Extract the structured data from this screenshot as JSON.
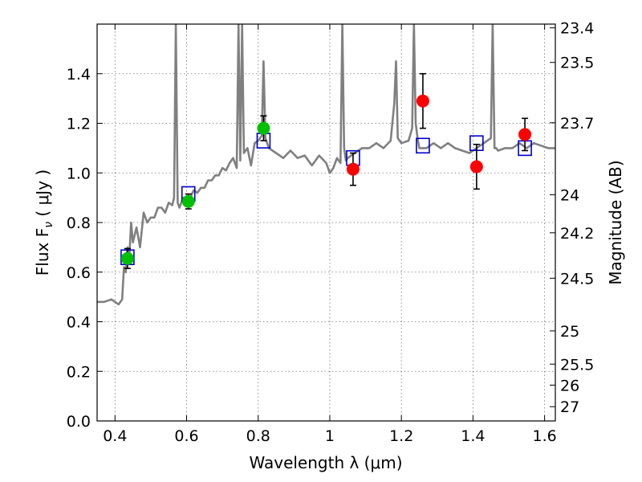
{
  "chart_data": {
    "type": "scatter",
    "title": "",
    "xlabel": "Wavelength  λ (μm)",
    "ylabel": "Flux  F",
    "ylabel_subscript": "ν",
    "ylabel_unit": "  ( μJy )",
    "ylabel_right": "Magnitude (AB)",
    "xlim": [
      0.35,
      1.63
    ],
    "ylim": [
      0.0,
      1.6
    ],
    "grid": true,
    "x_ticks": [
      0.4,
      0.6,
      0.8,
      1.0,
      1.2,
      1.4,
      1.6
    ],
    "x_tick_labels": [
      "0.4",
      "0.6",
      "0.8",
      "1",
      "1.2",
      "1.4",
      "1.6"
    ],
    "y_ticks": [
      0.0,
      0.2,
      0.4,
      0.6,
      0.8,
      1.0,
      1.2,
      1.4
    ],
    "y_tick_labels": [
      "0.0",
      "0.2",
      "0.4",
      "0.6",
      "0.8",
      "1.0",
      "1.2",
      "1.4"
    ],
    "right_ticks": [
      {
        "label": "23.4",
        "mag": 23.4
      },
      {
        "label": "23.5",
        "mag": 23.5
      },
      {
        "label": "23.7",
        "mag": 23.7
      },
      {
        "label": "24",
        "mag": 24.0
      },
      {
        "label": "24.2",
        "mag": 24.2
      },
      {
        "label": "24.5",
        "mag": 24.5
      },
      {
        "label": "25",
        "mag": 25.0
      },
      {
        "label": "25.5",
        "mag": 25.5
      },
      {
        "label": "26",
        "mag": 26.0
      },
      {
        "label": "27",
        "mag": 27.0
      }
    ],
    "model_spectrum": {
      "color": "#808080",
      "x": [
        0.35,
        0.37,
        0.39,
        0.41,
        0.42,
        0.425,
        0.43,
        0.435,
        0.44,
        0.445,
        0.45,
        0.46,
        0.47,
        0.48,
        0.49,
        0.5,
        0.51,
        0.52,
        0.53,
        0.54,
        0.55,
        0.56,
        0.565,
        0.57,
        0.575,
        0.58,
        0.59,
        0.6,
        0.61,
        0.62,
        0.63,
        0.64,
        0.65,
        0.66,
        0.67,
        0.68,
        0.69,
        0.7,
        0.71,
        0.72,
        0.73,
        0.74,
        0.745,
        0.75,
        0.755,
        0.76,
        0.77,
        0.78,
        0.79,
        0.8,
        0.81,
        0.815,
        0.82,
        0.825,
        0.83,
        0.85,
        0.87,
        0.89,
        0.91,
        0.93,
        0.95,
        0.97,
        0.99,
        1.0,
        1.01,
        1.02,
        1.03,
        1.035,
        1.04,
        1.045,
        1.05,
        1.07,
        1.09,
        1.11,
        1.13,
        1.15,
        1.17,
        1.18,
        1.185,
        1.19,
        1.2,
        1.22,
        1.23,
        1.235,
        1.24,
        1.245,
        1.25,
        1.27,
        1.29,
        1.31,
        1.33,
        1.35,
        1.37,
        1.39,
        1.41,
        1.43,
        1.45,
        1.455,
        1.46,
        1.465,
        1.47,
        1.49,
        1.51,
        1.53,
        1.55,
        1.57,
        1.59,
        1.61,
        1.63
      ],
      "y": [
        0.48,
        0.48,
        0.49,
        0.47,
        0.49,
        0.62,
        0.6,
        0.7,
        0.66,
        0.8,
        0.72,
        0.78,
        0.7,
        0.84,
        0.8,
        0.82,
        0.82,
        0.86,
        0.86,
        0.84,
        0.88,
        0.87,
        0.9,
        1.6,
        0.88,
        0.86,
        0.9,
        0.88,
        0.9,
        0.93,
        0.92,
        0.94,
        0.94,
        0.97,
        0.97,
        0.99,
        0.99,
        1.02,
        1.01,
        1.04,
        1.06,
        1.02,
        1.6,
        1.05,
        1.6,
        1.08,
        1.1,
        1.03,
        1.12,
        1.13,
        1.15,
        1.45,
        1.14,
        1.12,
        1.1,
        1.08,
        1.06,
        1.09,
        1.06,
        1.07,
        1.03,
        1.07,
        1.04,
        1.0,
        1.02,
        1.06,
        1.04,
        1.6,
        1.1,
        1.05,
        1.06,
        1.08,
        1.1,
        1.1,
        1.12,
        1.1,
        1.13,
        1.28,
        1.45,
        1.14,
        1.12,
        1.13,
        1.18,
        1.6,
        1.2,
        1.14,
        1.1,
        1.1,
        1.12,
        1.1,
        1.12,
        1.1,
        1.09,
        1.08,
        1.1,
        1.12,
        1.14,
        1.6,
        1.1,
        1.1,
        1.09,
        1.1,
        1.1,
        1.12,
        1.1,
        1.12,
        1.11,
        1.1,
        1.1
      ]
    },
    "observed_green": {
      "color": "#00c000",
      "x": [
        0.435,
        0.605,
        0.815
      ],
      "y": [
        0.655,
        0.885,
        1.18
      ],
      "err": [
        0.04,
        0.03,
        0.05
      ]
    },
    "observed_red": {
      "color": "#ff0000",
      "x": [
        1.065,
        1.26,
        1.41,
        1.545
      ],
      "y": [
        1.015,
        1.29,
        1.025,
        1.155
      ],
      "err": [
        0.065,
        0.11,
        0.09,
        0.065
      ]
    },
    "model_photometry": {
      "color": "#0000cc",
      "x": [
        0.435,
        0.605,
        0.815,
        1.065,
        1.26,
        1.41,
        1.545
      ],
      "y": [
        0.66,
        0.915,
        1.13,
        1.06,
        1.11,
        1.12,
        1.1
      ]
    }
  }
}
